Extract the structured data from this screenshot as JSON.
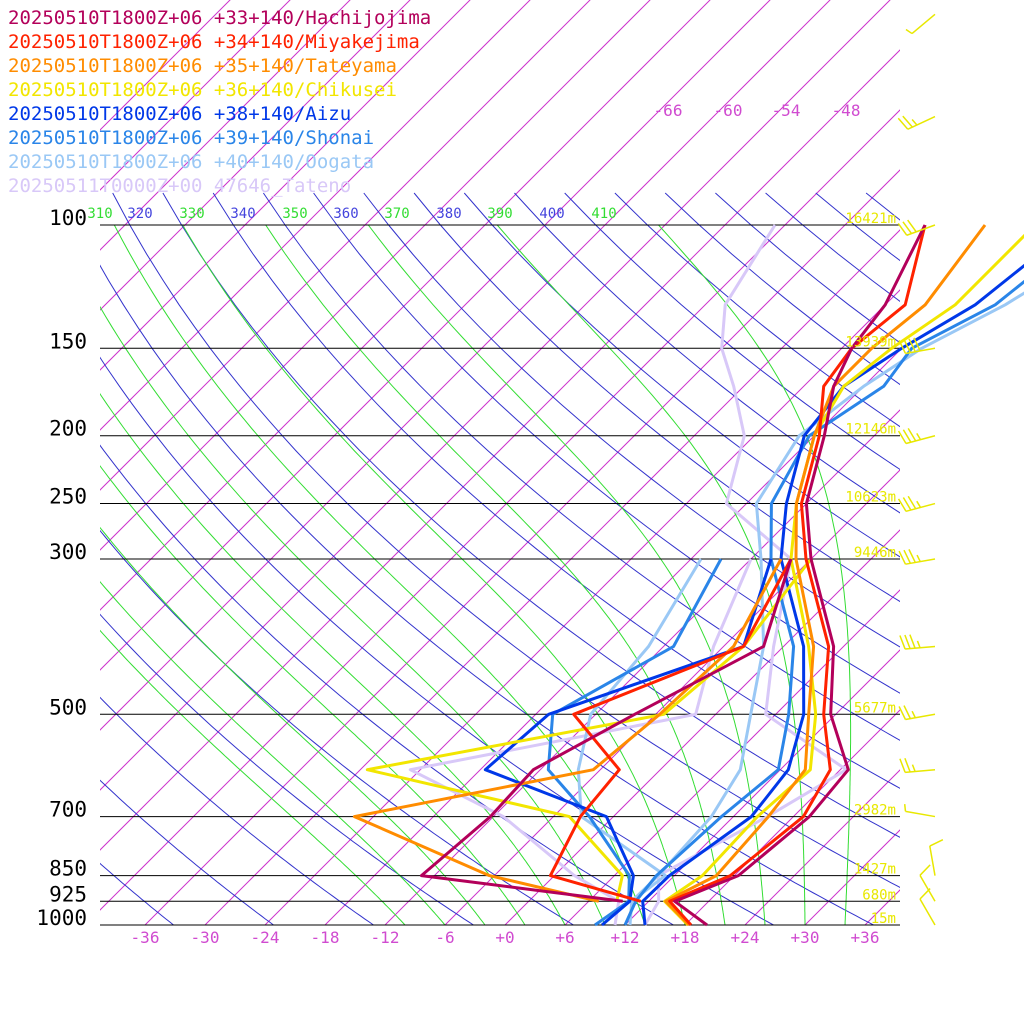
{
  "chart_data": {
    "type": "line",
    "title": "",
    "xlabel": "",
    "ylabel": "",
    "xlim": [
      -40,
      40
    ],
    "ylim": [
      1000,
      100
    ],
    "y_scale": "log",
    "skew": "skew-T",
    "grid": true,
    "legend_position": "top-left",
    "x_tick_labels": [
      "-36",
      "-30",
      "-24",
      "-18",
      "-12",
      "-6",
      "+0",
      "+6",
      "+12",
      "+18",
      "+24",
      "+30",
      "+36"
    ],
    "x_ticks": [
      -36,
      -30,
      -24,
      -18,
      -12,
      -6,
      0,
      6,
      12,
      18,
      24,
      30,
      36
    ],
    "pressure_labels": [
      "100",
      "150",
      "200",
      "250",
      "300",
      "500",
      "700",
      "850",
      "925",
      "1000"
    ],
    "pressure_levels": [
      100,
      150,
      200,
      250,
      300,
      500,
      700,
      850,
      925,
      1000
    ],
    "height_labels": [
      "16421m",
      "13939m",
      "12146m",
      "10623m",
      "9446m",
      "5677m",
      "2982m",
      "1427m",
      "680m",
      "15m"
    ],
    "theta_labels": [
      "310",
      "320",
      "330",
      "340",
      "350",
      "360",
      "370",
      "380",
      "390",
      "400",
      "410"
    ],
    "upper_isotherm_labels": [
      "-66",
      "-60",
      "-54",
      "-48"
    ],
    "colors": {
      "isotherm": "#cc33cc",
      "dry_adiabat": "#3333cc",
      "moist_adiabat": "#33dd33",
      "isobar": "#000000",
      "height_text": "#e8e800",
      "wind_barb": "#e8e800"
    },
    "series": [
      {
        "name": "20250510T1800Z+06 +33+140/Hachijojima",
        "color": "#b3005a",
        "temperature": [
          [
            1000,
            20.2
          ],
          [
            925,
            14.6
          ],
          [
            850,
            18.4
          ],
          [
            700,
            19.6
          ],
          [
            600,
            18.8
          ],
          [
            500,
            11.5
          ],
          [
            400,
            5
          ],
          [
            300,
            -6
          ],
          [
            250,
            -12
          ],
          [
            200,
            -17
          ],
          [
            170,
            -21
          ],
          [
            150,
            -23
          ],
          [
            130,
            -24
          ],
          [
            100,
            -28
          ]
        ],
        "dewpoint": [
          [
            925,
            9.4
          ],
          [
            850,
            -13.3
          ],
          [
            700,
            -12.3
          ],
          [
            600,
            -12.7
          ],
          [
            500,
            -8.1
          ],
          [
            400,
            -2
          ],
          [
            300,
            -8
          ]
        ]
      },
      {
        "name": "20250510T1800Z+06 +34+140/Miyakejima",
        "color": "#ff2200",
        "temperature": [
          [
            1000,
            18.6
          ],
          [
            925,
            14.1
          ],
          [
            850,
            17.6
          ],
          [
            700,
            19
          ],
          [
            600,
            17
          ],
          [
            500,
            10.8
          ],
          [
            400,
            4.5
          ],
          [
            300,
            -6.5
          ],
          [
            250,
            -12.5
          ],
          [
            200,
            -17.5
          ],
          [
            170,
            -22
          ],
          [
            150,
            -23
          ],
          [
            130,
            -22
          ],
          [
            100,
            -28
          ]
        ],
        "dewpoint": [
          [
            925,
            11.2
          ],
          [
            850,
            -0.4
          ],
          [
            700,
            -3.3
          ],
          [
            600,
            -4.1
          ],
          [
            500,
            -14.2
          ],
          [
            400,
            -4
          ],
          [
            300,
            -8
          ]
        ]
      },
      {
        "name": "20250510T1800Z+06 +35+140/Tateyama",
        "color": "#ff8c00",
        "temperature": [
          [
            1000,
            18.4
          ],
          [
            925,
            13.7
          ],
          [
            850,
            16.2
          ],
          [
            700,
            15.5
          ],
          [
            600,
            14.5
          ],
          [
            500,
            9.3
          ],
          [
            400,
            3
          ],
          [
            300,
            -7.5
          ],
          [
            250,
            -13
          ],
          [
            200,
            -18
          ],
          [
            170,
            -21
          ],
          [
            150,
            -21
          ],
          [
            130,
            -20
          ],
          [
            100,
            -22
          ]
        ],
        "dewpoint": [
          [
            925,
            7
          ],
          [
            850,
            -6.5
          ],
          [
            700,
            -25.9
          ],
          [
            600,
            -6.7
          ],
          [
            500,
            -5.6
          ],
          [
            400,
            -5
          ],
          [
            300,
            -9
          ]
        ]
      },
      {
        "name": "20250510T1800Z+06 +36+140/Chikusei",
        "color": "#f2e600",
        "temperature": [
          [
            1000,
            18.3
          ],
          [
            925,
            13.6
          ],
          [
            850,
            14.8
          ],
          [
            700,
            14.4
          ],
          [
            600,
            15
          ],
          [
            500,
            10
          ],
          [
            400,
            2.5
          ],
          [
            300,
            -8
          ],
          [
            250,
            -13
          ],
          [
            200,
            -18
          ],
          [
            170,
            -20
          ],
          [
            150,
            -19
          ],
          [
            130,
            -17
          ],
          [
            100,
            -17
          ]
        ],
        "dewpoint": [
          [
            925,
            8.8
          ],
          [
            850,
            6.8
          ],
          [
            700,
            -4.4
          ],
          [
            600,
            -29.3
          ],
          [
            500,
            -5.2
          ],
          [
            400,
            -4
          ],
          [
            300,
            -6
          ]
        ]
      },
      {
        "name": "20250510T1800Z+06 +38+140/Aizu",
        "color": "#0038e8",
        "temperature": [
          [
            1000,
            14
          ],
          [
            925,
            11.4
          ],
          [
            850,
            11.5
          ],
          [
            700,
            13.8
          ],
          [
            600,
            12.8
          ],
          [
            500,
            8.8
          ],
          [
            400,
            2
          ],
          [
            300,
            -9
          ],
          [
            250,
            -14
          ],
          [
            200,
            -19
          ],
          [
            170,
            -20
          ],
          [
            150,
            -18
          ],
          [
            130,
            -15
          ],
          [
            100,
            -13
          ]
        ],
        "dewpoint": [
          [
            1000,
            9.7
          ],
          [
            925,
            10.1
          ],
          [
            850,
            7.9
          ],
          [
            700,
            -0.7
          ],
          [
            600,
            -17.5
          ],
          [
            500,
            -16.7
          ],
          [
            400,
            -4
          ],
          [
            300,
            -10
          ]
        ]
      },
      {
        "name": "20250510T1800Z+06 +39+140/Shonai",
        "color": "#2a85e8",
        "temperature": [
          [
            1000,
            12
          ],
          [
            925,
            10.7
          ],
          [
            850,
            10.2
          ],
          [
            700,
            10.8
          ],
          [
            600,
            11.8
          ],
          [
            500,
            7.3
          ],
          [
            400,
            1
          ],
          [
            300,
            -10
          ],
          [
            250,
            -15.5
          ],
          [
            200,
            -18.5
          ],
          [
            170,
            -16
          ],
          [
            150,
            -17
          ],
          [
            130,
            -13
          ],
          [
            100,
            -11
          ]
        ],
        "dewpoint": [
          [
            1000,
            9
          ],
          [
            925,
            10
          ],
          [
            850,
            7.5
          ],
          [
            700,
            -2.4
          ],
          [
            600,
            -11.2
          ],
          [
            500,
            -16.3
          ],
          [
            400,
            -11
          ],
          [
            300,
            -15
          ]
        ]
      },
      {
        "name": "20250510T1800Z+06 +40+140/Oogata",
        "color": "#9ac8f5",
        "temperature": [
          [
            1000,
            12.5
          ],
          [
            925,
            10.3
          ],
          [
            850,
            10.4
          ],
          [
            700,
            9.8
          ],
          [
            600,
            8
          ],
          [
            500,
            3.5
          ],
          [
            400,
            -2
          ],
          [
            300,
            -11
          ],
          [
            250,
            -17
          ],
          [
            200,
            -19.5
          ],
          [
            170,
            -18
          ],
          [
            150,
            -16
          ],
          [
            130,
            -12
          ],
          [
            100,
            -7
          ]
        ],
        "dewpoint": [
          [
            925,
            10.3
          ],
          [
            850,
            11.1
          ],
          [
            700,
            -3.2
          ],
          [
            600,
            -8.2
          ],
          [
            500,
            -12.5
          ],
          [
            400,
            -13.5
          ],
          [
            300,
            -17
          ]
        ]
      },
      {
        "name": "20250511T0000Z+00 47646_Tateno",
        "color": "#d8c8f8",
        "temperature": [
          [
            1000,
            14
          ],
          [
            925,
            13
          ],
          [
            850,
            10.4
          ],
          [
            700,
            15.4
          ],
          [
            600,
            18.6
          ],
          [
            500,
            5
          ],
          [
            400,
            -1
          ],
          [
            300,
            -8
          ],
          [
            250,
            -20
          ],
          [
            200,
            -25
          ],
          [
            170,
            -31
          ],
          [
            150,
            -36
          ],
          [
            130,
            -40
          ],
          [
            100,
            -43
          ]
        ],
        "dewpoint": [
          [
            1000,
            11
          ],
          [
            925,
            9
          ],
          [
            850,
            2
          ],
          [
            700,
            -11
          ],
          [
            600,
            -25
          ],
          [
            500,
            -2
          ],
          [
            400,
            -7
          ],
          [
            300,
            -12
          ]
        ]
      }
    ],
    "wind": [
      {
        "p": 1000,
        "dir": 330,
        "kt": 10
      },
      {
        "p": 925,
        "dir": 330,
        "kt": 10
      },
      {
        "p": 850,
        "dir": 350,
        "kt": 10
      },
      {
        "p": 700,
        "dir": 280,
        "kt": 5
      },
      {
        "p": 600,
        "dir": 265,
        "kt": 25
      },
      {
        "p": 500,
        "dir": 260,
        "kt": 25
      },
      {
        "p": 400,
        "dir": 265,
        "kt": 35
      },
      {
        "p": 300,
        "dir": 260,
        "kt": 35
      },
      {
        "p": 250,
        "dir": 255,
        "kt": 35
      },
      {
        "p": 200,
        "dir": 255,
        "kt": 35
      },
      {
        "p": 150,
        "dir": 260,
        "kt": 40
      },
      {
        "p": 100,
        "dir": 250,
        "kt": 30
      },
      {
        "p": 70,
        "dir": 245,
        "kt": 25
      },
      {
        "p": 50,
        "dir": 230,
        "kt": 5
      }
    ]
  }
}
